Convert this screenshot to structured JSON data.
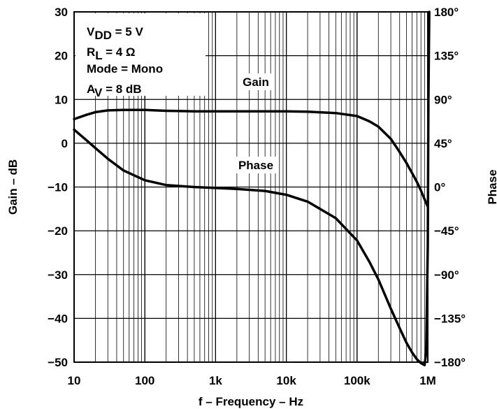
{
  "chart_data": {
    "type": "line",
    "title": "",
    "xlabel": "f – Frequency – Hz",
    "ylabel": "Gain – dB",
    "y2label": "Phase",
    "xscale": "log",
    "xlim": [
      10,
      1000000
    ],
    "ylim": [
      -50,
      30
    ],
    "y2lim": [
      -180,
      180
    ],
    "grid": true,
    "x_ticks": [
      {
        "value": 10,
        "label": "10"
      },
      {
        "value": 100,
        "label": "100"
      },
      {
        "value": 1000,
        "label": "1k"
      },
      {
        "value": 10000,
        "label": "10k"
      },
      {
        "value": 100000,
        "label": "100k"
      },
      {
        "value": 1000000,
        "label": "1M"
      }
    ],
    "y_ticks": [
      {
        "value": 30,
        "label": "30"
      },
      {
        "value": 20,
        "label": "20"
      },
      {
        "value": 10,
        "label": "10"
      },
      {
        "value": 0,
        "label": "0"
      },
      {
        "value": -10,
        "label": "−10"
      },
      {
        "value": -20,
        "label": "−20"
      },
      {
        "value": -30,
        "label": "−30"
      },
      {
        "value": -40,
        "label": "−40"
      },
      {
        "value": -50,
        "label": "−50"
      }
    ],
    "y2_ticks": [
      {
        "value": 180,
        "label": "180°"
      },
      {
        "value": 135,
        "label": "135°"
      },
      {
        "value": 90,
        "label": "90°"
      },
      {
        "value": 45,
        "label": "45°"
      },
      {
        "value": 0,
        "label": "0°"
      },
      {
        "value": -45,
        "label": "−45°"
      },
      {
        "value": -90,
        "label": "−90°"
      },
      {
        "value": -135,
        "label": "−135°"
      },
      {
        "value": -180,
        "label": "−180°"
      }
    ],
    "conditions": [
      {
        "main": "V",
        "sub": "DD",
        "rest": " = 5 V"
      },
      {
        "main": "R",
        "sub": "L",
        "rest": " = 4 Ω"
      },
      {
        "main": "Mode = Mono",
        "sub": "",
        "rest": ""
      },
      {
        "main": "A",
        "sub": "V",
        "rest": " = 8 dB"
      }
    ],
    "series": [
      {
        "name": "Gain",
        "axis": "left",
        "x": [
          10,
          15,
          20,
          30,
          50,
          100,
          200,
          500,
          1000,
          2000,
          5000,
          10000,
          20000,
          50000,
          100000,
          150000,
          200000,
          300000,
          400000,
          500000,
          600000,
          700000,
          800000,
          900000,
          1000000
        ],
        "y": [
          5.5,
          6.5,
          7.1,
          7.5,
          7.6,
          7.6,
          7.4,
          7.3,
          7.3,
          7.3,
          7.3,
          7.3,
          7.2,
          6.9,
          6.2,
          5.0,
          3.8,
          1.0,
          -2.0,
          -4.5,
          -6.8,
          -8.8,
          -10.8,
          -12.8,
          -14.5
        ]
      },
      {
        "name": "Phase",
        "axis": "right",
        "x": [
          10,
          15,
          20,
          30,
          50,
          100,
          200,
          500,
          1000,
          2000,
          5000,
          10000,
          20000,
          50000,
          100000,
          150000,
          200000,
          300000,
          400000,
          500000,
          600000,
          700000,
          800000,
          900000,
          950000,
          1000000,
          1020000,
          1050000
        ],
        "y": [
          59,
          48,
          40,
          29,
          17,
          7,
          2,
          0,
          -1,
          -2,
          -4,
          -8,
          -15,
          -32,
          -55,
          -77,
          -95,
          -125,
          -145,
          -160,
          -170,
          -177,
          -181,
          -183,
          -170,
          -60,
          90,
          180
        ]
      }
    ]
  }
}
